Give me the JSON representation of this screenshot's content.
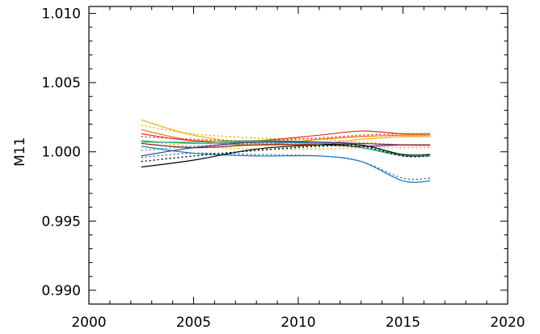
{
  "chart_data": {
    "type": "line",
    "title": "",
    "xlabel": "",
    "ylabel": "M11",
    "xlim": [
      2000,
      2020
    ],
    "ylim": [
      0.989,
      1.0105
    ],
    "x_ticks": [
      2000,
      2005,
      2010,
      2015,
      2020
    ],
    "x_tick_labels": [
      "2000",
      "2005",
      "2010",
      "2015",
      "2020"
    ],
    "x_minor_step": 1,
    "y_ticks": [
      0.99,
      0.995,
      1.0,
      1.005,
      1.01
    ],
    "y_tick_labels": [
      "0.990",
      "0.995",
      "1.000",
      "1.005",
      "1.010"
    ],
    "y_minor_step": 0.001,
    "grid": false,
    "legend": "none",
    "series": [
      {
        "color": "#f5a800",
        "style": "solid",
        "x": [
          2002.5,
          2005,
          2008,
          2011,
          2013,
          2015,
          2016.3
        ],
        "y": [
          1.0023,
          1.0012,
          1.0006,
          1.0006,
          1.0009,
          1.0011,
          1.0011
        ]
      },
      {
        "color": "#f5a800",
        "style": "dotted",
        "x": [
          2002.5,
          2005,
          2008,
          2011,
          2013,
          2015,
          2016.3
        ],
        "y": [
          1.0019,
          1.0013,
          1.001,
          1.0009,
          1.0007,
          1.0005,
          1.0004
        ]
      },
      {
        "color": "#f07000",
        "style": "solid",
        "x": [
          2002.5,
          2005,
          2008,
          2011,
          2013,
          2015,
          2016.3
        ],
        "y": [
          1.0016,
          1.0008,
          1.0005,
          1.0009,
          1.0011,
          1.0012,
          1.0012
        ]
      },
      {
        "color": "#e03020",
        "style": "solid",
        "x": [
          2002.5,
          2005,
          2008,
          2011,
          2013,
          2015,
          2016.3
        ],
        "y": [
          1.0013,
          1.0008,
          1.0008,
          1.0012,
          1.0015,
          1.0013,
          1.0013
        ]
      },
      {
        "color": "#e03020",
        "style": "dotted",
        "x": [
          2002.5,
          2005,
          2008,
          2011,
          2013,
          2015,
          2016.3
        ],
        "y": [
          1.0011,
          1.0009,
          1.0008,
          1.001,
          1.0012,
          1.0013,
          1.0013
        ]
      },
      {
        "color": "#c8c000",
        "style": "dotted",
        "x": [
          2002.5,
          2005,
          2008,
          2011,
          2013,
          2015,
          2016.3
        ],
        "y": [
          1.0008,
          1.0004,
          1.0002,
          1.0002,
          1.0003,
          1.0003,
          1.0003
        ]
      },
      {
        "color": "#30b050",
        "style": "solid",
        "x": [
          2002.5,
          2005,
          2008,
          2011,
          2013,
          2015,
          2016.3
        ],
        "y": [
          1.0007,
          1.0007,
          1.0008,
          1.0007,
          1.0003,
          0.9997,
          0.9997
        ]
      },
      {
        "color": "#20b0a0",
        "style": "solid",
        "x": [
          2002.5,
          2005,
          2008,
          2011,
          2013,
          2015,
          2016.3
        ],
        "y": [
          1.0008,
          1.0006,
          1.0007,
          1.0006,
          1.0003,
          0.9998,
          0.9998
        ]
      },
      {
        "color": "#20b0a0",
        "style": "dotted",
        "x": [
          2002.5,
          2005,
          2008,
          2011,
          2013,
          2015,
          2016.3
        ],
        "y": [
          1.0001,
          1.0004,
          1.0006,
          1.0006,
          1.0003,
          0.9997,
          0.9997
        ]
      },
      {
        "color": "#1f78b4",
        "style": "solid",
        "x": [
          2002.5,
          2005,
          2008,
          2011,
          2013,
          2015,
          2016.3
        ],
        "y": [
          1.0004,
          0.9999,
          0.9997,
          0.9997,
          0.9993,
          0.9979,
          0.9979
        ]
      },
      {
        "color": "#1f78b4",
        "style": "dotted",
        "x": [
          2002.5,
          2005,
          2008,
          2011,
          2013,
          2015,
          2016.3
        ],
        "y": [
          0.9996,
          0.9999,
          0.9998,
          0.9997,
          0.9993,
          0.9981,
          0.9981
        ]
      },
      {
        "color": "#4b2a8a",
        "style": "solid",
        "x": [
          2002.5,
          2005,
          2008,
          2011,
          2013,
          2015,
          2016.3
        ],
        "y": [
          0.9997,
          1.0003,
          1.0007,
          1.0007,
          1.0006,
          1.0005,
          1.0005
        ]
      },
      {
        "color": "#8a1a1a",
        "style": "solid",
        "x": [
          2002.5,
          2005,
          2008,
          2011,
          2013,
          2015,
          2016.3
        ],
        "y": [
          1.0006,
          1.0003,
          1.0005,
          1.0005,
          1.0004,
          1.0005,
          1.0005
        ]
      },
      {
        "color": "#000000",
        "style": "solid",
        "x": [
          2002.5,
          2005,
          2008,
          2011,
          2013,
          2015,
          2016.3
        ],
        "y": [
          0.9989,
          0.9994,
          1.0002,
          1.0005,
          1.0005,
          0.9998,
          0.9998
        ]
      },
      {
        "color": "#000000",
        "style": "dotted",
        "x": [
          2002.5,
          2005,
          2008,
          2011,
          2013,
          2015,
          2016.3
        ],
        "y": [
          0.9993,
          0.9997,
          1.0001,
          1.0004,
          1.0004,
          0.9997,
          0.9997
        ]
      }
    ]
  }
}
